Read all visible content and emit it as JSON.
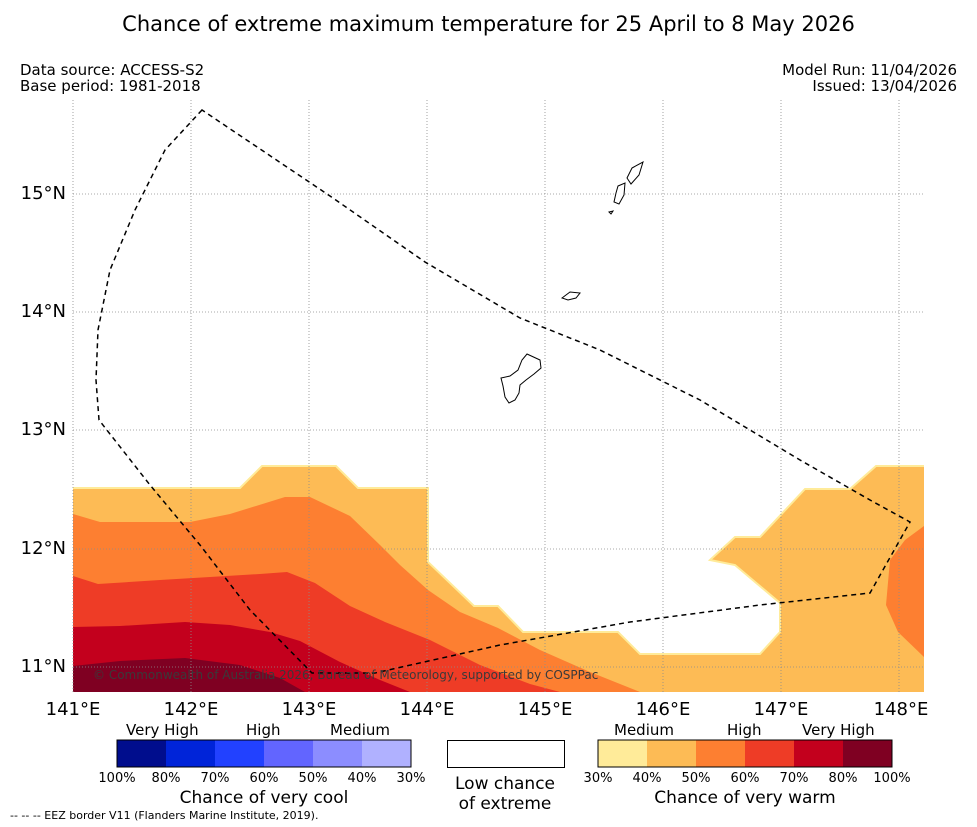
{
  "title": "Chance of extreme maximum temperature for 25 April to 8 May 2026",
  "meta": {
    "data_source": "Data source: ACCESS-S2",
    "base_period": "Base period: 1981-2018",
    "model_run": "Model Run: 11/04/2026",
    "issued": "Issued: 13/04/2026"
  },
  "map": {
    "lat_labels": [
      "15°N",
      "14°N",
      "13°N",
      "12°N",
      "11°N"
    ],
    "lon_labels": [
      "141°E",
      "142°E",
      "143°E",
      "144°E",
      "145°E",
      "146°E",
      "147°E",
      "148°E"
    ],
    "copyright": "© Commonwealth of Australia 2026, Bureau of Meteorology, supported by COSPPac",
    "colors": {
      "warm_30_40": "#ffeb99",
      "warm_40_50": "#fdbb55",
      "warm_50_60": "#fd7f31",
      "warm_60_70": "#ee3c26",
      "warm_70_80": "#c3001d",
      "warm_80_100": "#7f0022"
    }
  },
  "legend": {
    "cool": {
      "categories": [
        "Very High",
        "High",
        "Medium"
      ],
      "percents": [
        "100%",
        "80%",
        "70%",
        "60%",
        "50%",
        "40%",
        "30%"
      ],
      "colors": [
        "#000d8d",
        "#0024d9",
        "#2241ff",
        "#6265ff",
        "#8c8dff",
        "#b0b1ff"
      ],
      "caption": "Chance of very cool"
    },
    "low": {
      "caption_line1": "Low chance",
      "caption_line2": "of extreme",
      "color": "#ffffff"
    },
    "warm": {
      "categories": [
        "Medium",
        "High",
        "Very High"
      ],
      "percents": [
        "30%",
        "40%",
        "50%",
        "60%",
        "70%",
        "80%",
        "100%"
      ],
      "colors": [
        "#ffeb99",
        "#fdbb55",
        "#fd7f31",
        "#ee3c26",
        "#c3001d",
        "#7f0022"
      ],
      "caption": "Chance of very warm"
    }
  },
  "footer": {
    "eez_note": "--  --  -- EEZ border V11 (Flanders Marine Institute, 2019)."
  }
}
